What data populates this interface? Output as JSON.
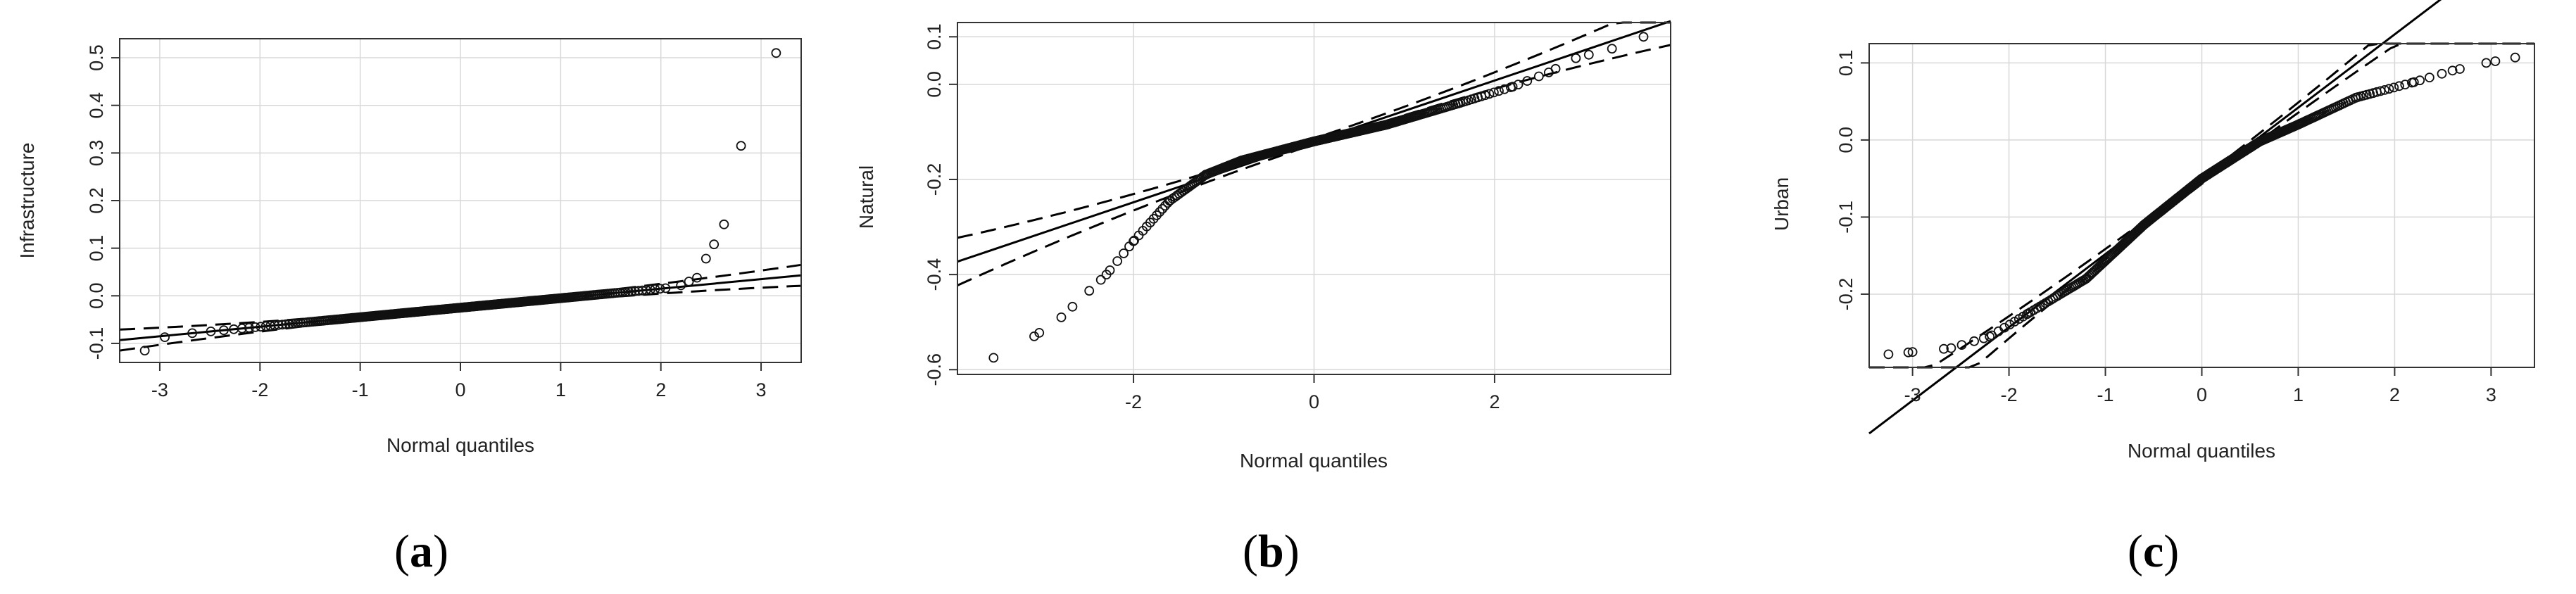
{
  "chart_data": [
    {
      "type": "scatter",
      "panel_label": "a",
      "xlabel": "Normal quantiles",
      "ylabel": "Infrastructure",
      "xlim": [
        -3.4,
        3.4
      ],
      "ylim": [
        -0.14,
        0.54
      ],
      "xticks": [
        -3,
        -2,
        -1,
        0,
        1,
        2,
        3
      ],
      "xtick_labels": [
        "-3",
        "-2",
        "-1",
        "0",
        "1",
        "2",
        "3"
      ],
      "yticks": [
        -0.1,
        0.0,
        0.1,
        0.2,
        0.3,
        0.4,
        0.5
      ],
      "ytick_labels": [
        "-0.1",
        "0.0",
        "0.1",
        "0.2",
        "0.3",
        "0.4",
        "0.5"
      ],
      "grid": true,
      "reference_line": {
        "intercept": -0.025,
        "slope": 0.02
      },
      "envelope_halfwidth_range": [
        0.004,
        0.022
      ],
      "points": {
        "body_quantile_range": [
          -2.7,
          2.1
        ],
        "body_intercept": -0.025,
        "body_slope": 0.02,
        "extra": [
          [
            -3.15,
            -0.115
          ],
          [
            -2.95,
            -0.087
          ],
          [
            2.2,
            0.022
          ],
          [
            2.28,
            0.03
          ],
          [
            2.36,
            0.038
          ],
          [
            2.45,
            0.078
          ],
          [
            2.53,
            0.108
          ],
          [
            2.63,
            0.15
          ],
          [
            2.8,
            0.315
          ],
          [
            3.15,
            0.51
          ]
        ]
      }
    },
    {
      "type": "scatter",
      "panel_label": "b",
      "xlabel": "Normal quantiles",
      "ylabel": "Natural",
      "xlim": [
        -3.95,
        3.95
      ],
      "ylim": [
        -0.61,
        0.13
      ],
      "xticks": [
        -2,
        0,
        2
      ],
      "xtick_labels": [
        "-2",
        "0",
        "2"
      ],
      "yticks": [
        -0.6,
        -0.4,
        -0.2,
        0.0,
        0.1
      ],
      "ytick_labels": [
        "-0.6",
        "-0.4",
        "-0.2",
        "0.0",
        "0.1"
      ],
      "grid": true,
      "reference_line": {
        "intercept": -0.12,
        "slope": 0.064
      },
      "envelope_halfwidth_range": [
        0.006,
        0.05
      ],
      "points": {
        "anchors": [
          [
            -3.55,
            -0.575
          ],
          [
            -3.1,
            -0.53
          ],
          [
            -2.8,
            -0.49
          ],
          [
            -2.3,
            -0.4
          ],
          [
            -2.0,
            -0.33
          ],
          [
            -1.6,
            -0.245
          ],
          [
            -1.2,
            -0.19
          ],
          [
            -0.8,
            -0.16
          ],
          [
            0.0,
            -0.12
          ],
          [
            0.8,
            -0.085
          ],
          [
            1.6,
            -0.04
          ],
          [
            2.2,
            -0.005
          ],
          [
            2.6,
            0.025
          ],
          [
            2.9,
            0.055
          ],
          [
            3.3,
            0.075
          ],
          [
            3.65,
            0.1
          ]
        ]
      }
    },
    {
      "type": "scatter",
      "panel_label": "c",
      "xlabel": "Normal quantiles",
      "ylabel": "Urban",
      "xlim": [
        -3.45,
        3.45
      ],
      "ylim": [
        -0.295,
        0.125
      ],
      "xticks": [
        -3,
        -2,
        -1,
        0,
        1,
        2,
        3
      ],
      "xtick_labels": [
        "-3",
        "-2",
        "-1",
        "0",
        "1",
        "2",
        "3"
      ],
      "yticks": [
        -0.2,
        -0.1,
        0.0,
        0.1
      ],
      "ytick_labels": [
        "-0.2",
        "-0.1",
        "0.0",
        "0.1"
      ],
      "grid": true,
      "reference_line": {
        "intercept": -0.053,
        "slope": 0.095
      },
      "envelope_halfwidth_range": [
        0.004,
        0.035
      ],
      "points": {
        "anchors": [
          [
            -3.25,
            -0.278
          ],
          [
            -3.0,
            -0.275
          ],
          [
            -2.6,
            -0.27
          ],
          [
            -2.2,
            -0.255
          ],
          [
            -1.8,
            -0.225
          ],
          [
            -1.2,
            -0.18
          ],
          [
            -0.6,
            -0.11
          ],
          [
            0.0,
            -0.05
          ],
          [
            0.6,
            -0.002
          ],
          [
            1.0,
            0.02
          ],
          [
            1.6,
            0.055
          ],
          [
            2.2,
            0.075
          ],
          [
            2.6,
            0.09
          ],
          [
            2.95,
            0.1
          ],
          [
            3.25,
            0.107
          ]
        ]
      }
    }
  ]
}
